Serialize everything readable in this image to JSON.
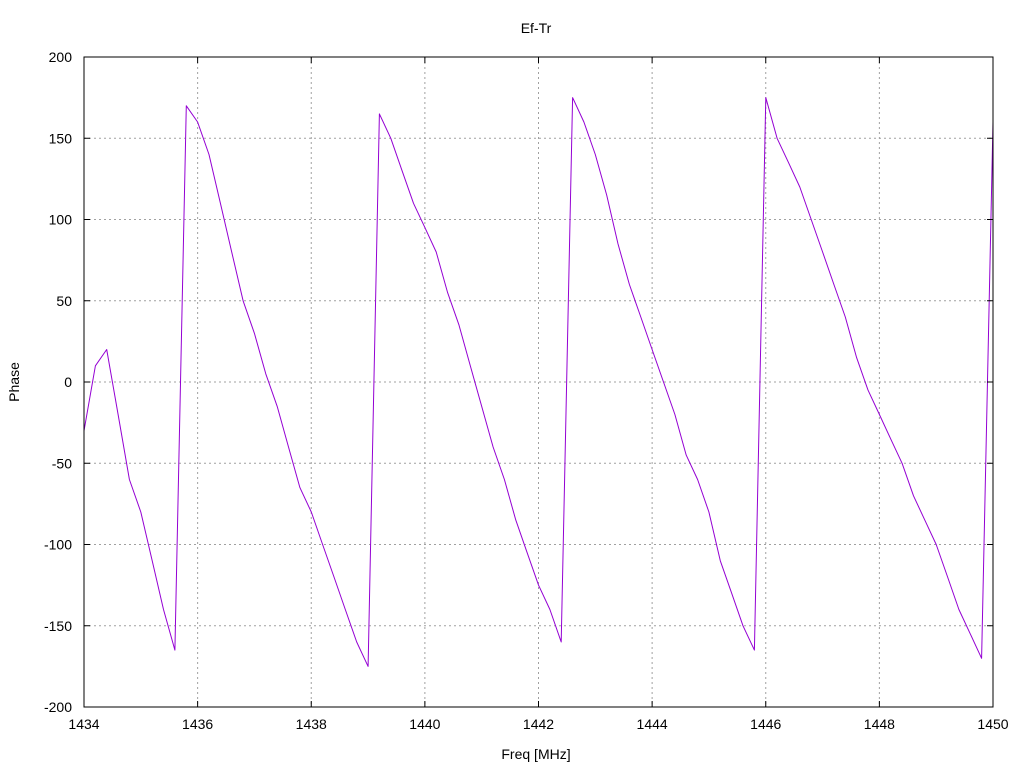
{
  "chart_data": {
    "type": "line",
    "title": "Ef-Tr",
    "xlabel": "Freq [MHz]",
    "ylabel": "Phase",
    "xlim": [
      1434,
      1450
    ],
    "ylim": [
      -200,
      200
    ],
    "x_ticks": [
      1434,
      1436,
      1438,
      1440,
      1442,
      1444,
      1446,
      1448,
      1450
    ],
    "y_ticks": [
      -200,
      -150,
      -100,
      -50,
      0,
      50,
      100,
      150,
      200
    ],
    "x_tick_labels": [
      "1434",
      "1436",
      "1438",
      "1440",
      "1442",
      "1444",
      "1446",
      "1448",
      "1450"
    ],
    "y_tick_labels": [
      "-200",
      "-150",
      "-100",
      "-50",
      "0",
      "50",
      "100",
      "150",
      "200"
    ],
    "grid": true,
    "legend": "none",
    "series_color": "#9400d3",
    "series": [
      {
        "x": [
          1434.0,
          1434.2,
          1434.4,
          1434.6,
          1434.8,
          1435.0,
          1435.2,
          1435.4,
          1435.6,
          1435.8,
          1436.0,
          1436.2,
          1436.4,
          1436.6,
          1436.8,
          1437.0,
          1437.2,
          1437.4,
          1437.6,
          1437.8,
          1438.0,
          1438.2,
          1438.4,
          1438.6,
          1438.8,
          1439.0,
          1439.2,
          1439.4,
          1439.6,
          1439.8,
          1440.0,
          1440.2,
          1440.4,
          1440.6,
          1440.8,
          1441.0,
          1441.2,
          1441.4,
          1441.6,
          1441.8,
          1442.0,
          1442.2,
          1442.4,
          1442.6,
          1442.8,
          1443.0,
          1443.2,
          1443.4,
          1443.6,
          1443.8,
          1444.0,
          1444.2,
          1444.4,
          1444.6,
          1444.8,
          1445.0,
          1445.2,
          1445.4,
          1445.6,
          1445.8,
          1446.0,
          1446.2,
          1446.4,
          1446.6,
          1446.8,
          1447.0,
          1447.2,
          1447.4,
          1447.6,
          1447.8,
          1448.0,
          1448.2,
          1448.4,
          1448.6,
          1448.8,
          1449.0,
          1449.2,
          1449.4,
          1449.6,
          1449.8,
          1450.0
        ],
        "y": [
          -30,
          10,
          20,
          -20,
          -60,
          -80,
          -110,
          -140,
          -165,
          170,
          160,
          140,
          110,
          80,
          50,
          30,
          5,
          -15,
          -40,
          -65,
          -80,
          -100,
          -120,
          -140,
          -160,
          -175,
          165,
          150,
          130,
          110,
          95,
          80,
          55,
          35,
          10,
          -15,
          -40,
          -60,
          -85,
          -105,
          -125,
          -140,
          -160,
          175,
          160,
          140,
          115,
          85,
          60,
          40,
          20,
          0,
          -20,
          -45,
          -60,
          -80,
          -110,
          -130,
          -150,
          -165,
          175,
          150,
          135,
          120,
          100,
          80,
          60,
          40,
          15,
          -5,
          -20,
          -35,
          -50,
          -70,
          -85,
          -100,
          -120,
          -140,
          -155,
          -170,
          160
        ]
      }
    ]
  }
}
